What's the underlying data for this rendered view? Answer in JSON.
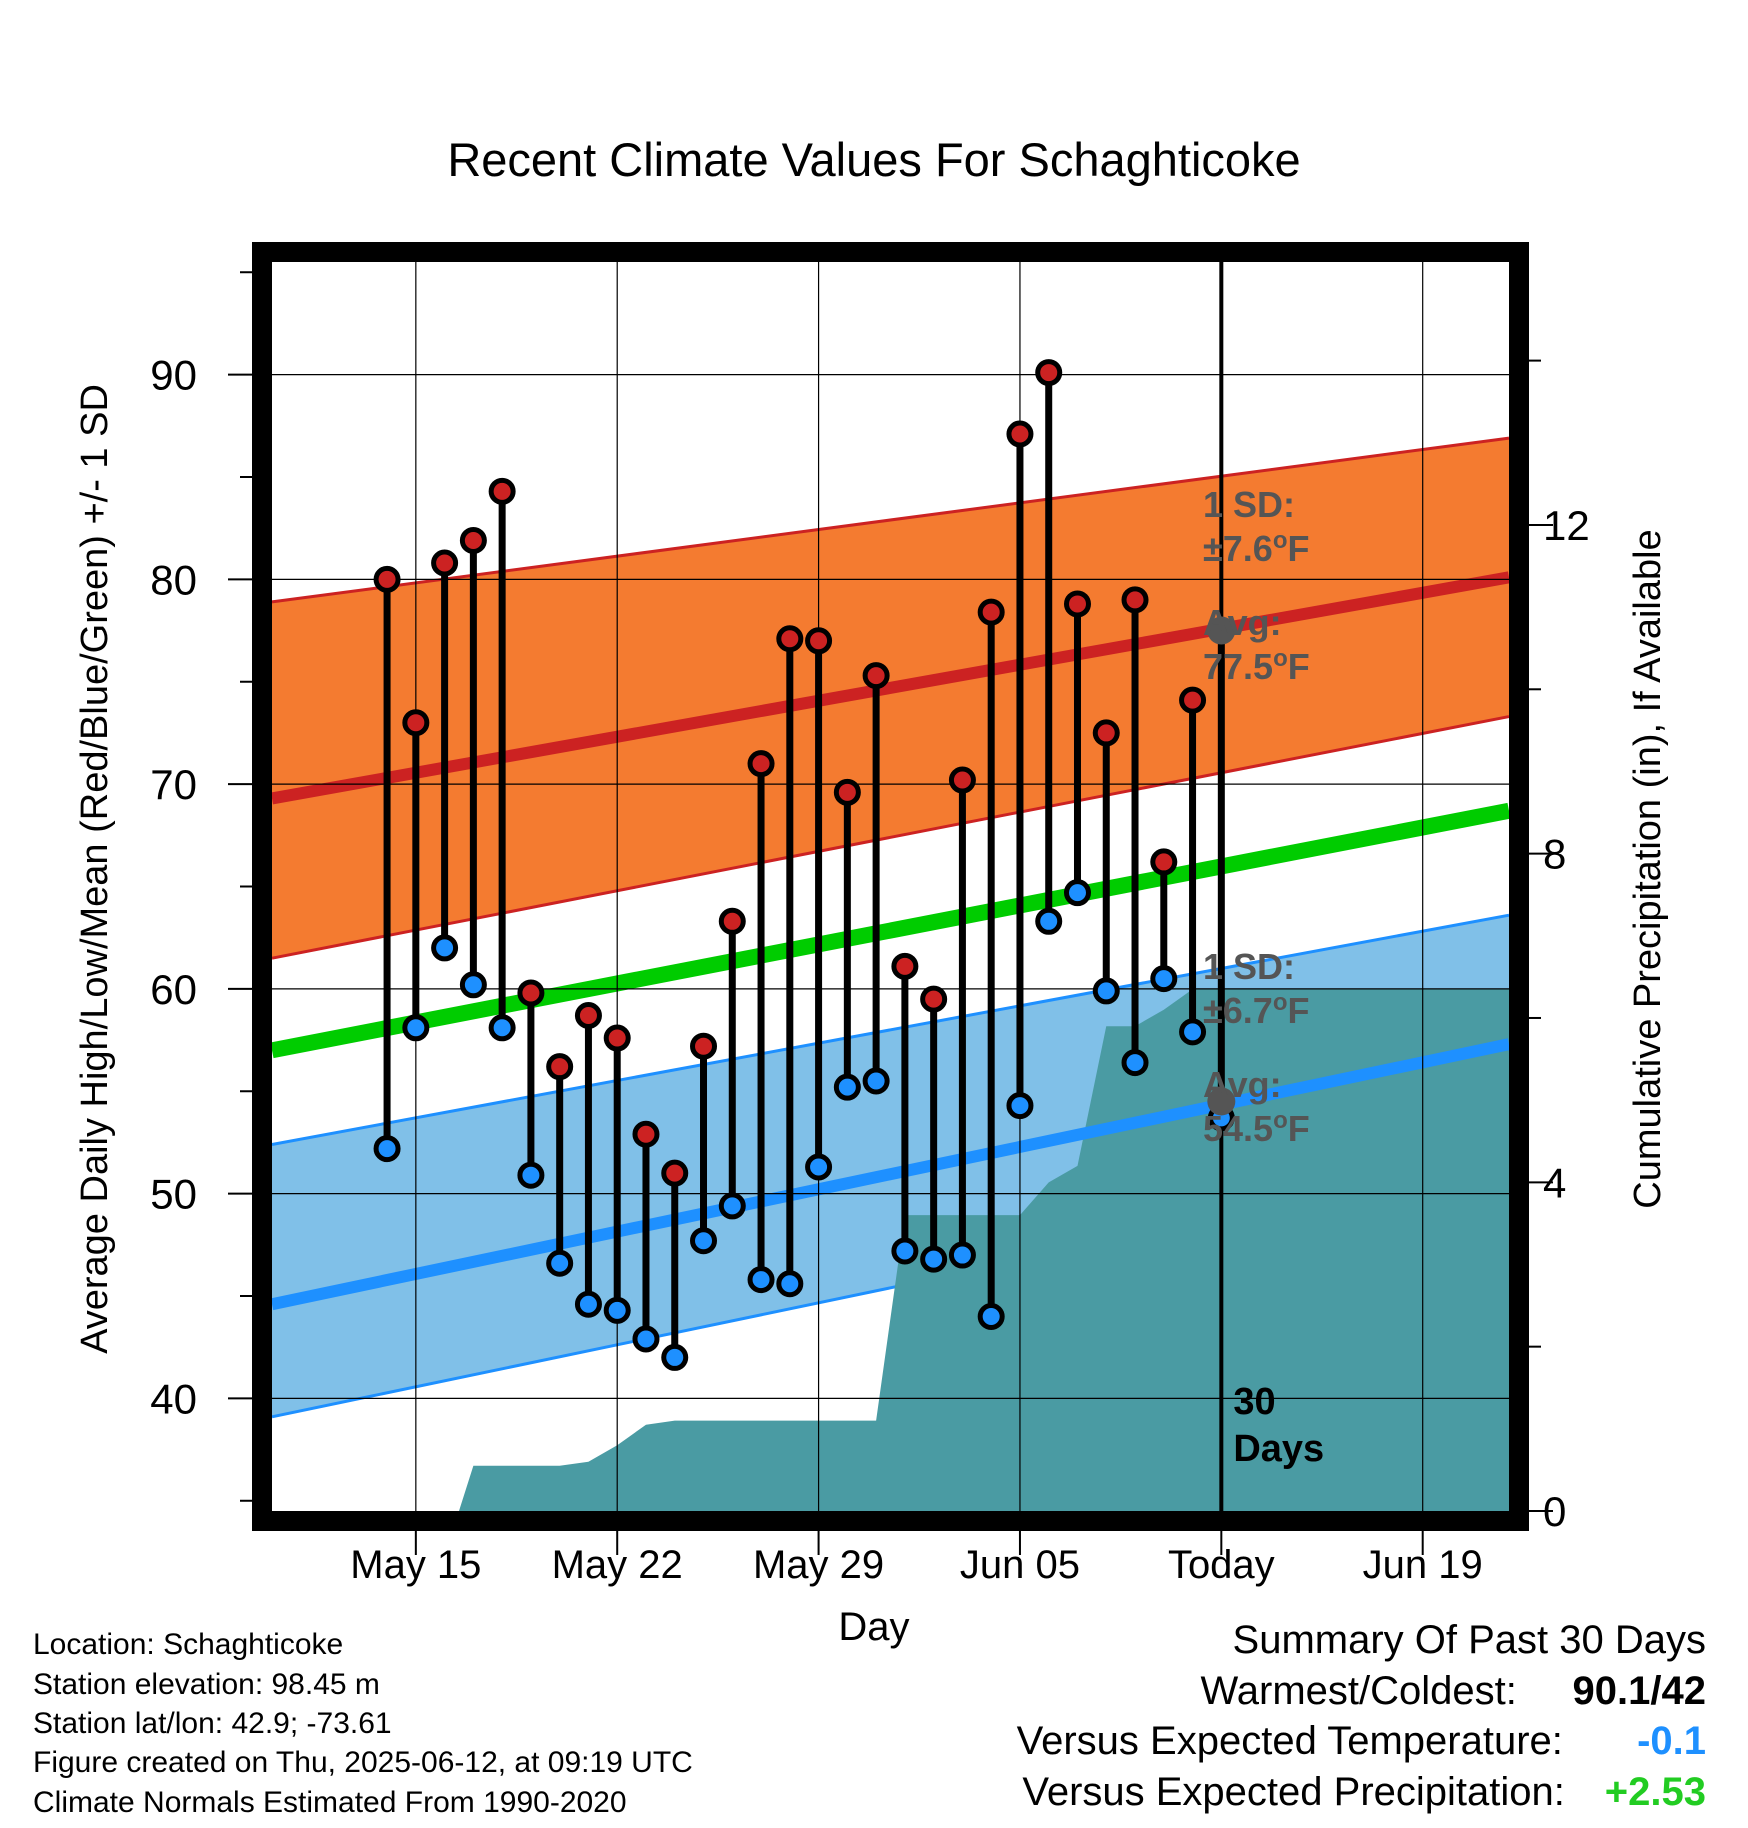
{
  "chart_data": {
    "type": "line",
    "title": "Recent Climate Values For Schaghticoke",
    "xlabel": "Day",
    "ylabel": "Average Daily High/Low/Mean (Red/Blue/Green) +/- 1 SD",
    "y2label": "Cumulative Precipitation (in), If Available",
    "ylim": [
      34.5,
      95.5
    ],
    "y2lim": [
      0,
      15.2
    ],
    "xlim_days": [
      "May 10",
      "Jun 22"
    ],
    "yticks": [
      "40",
      "50",
      "60",
      "70",
      "80",
      "90"
    ],
    "y2ticks": [
      "0",
      "4",
      "8",
      "12"
    ],
    "xticks": [
      {
        "date": "May 15",
        "label": "May 15"
      },
      {
        "date": "May 22",
        "label": "May 22"
      },
      {
        "date": "May 29",
        "label": "May 29"
      },
      {
        "date": "Jun 05",
        "label": "Jun 05"
      },
      {
        "date": "Jun 12",
        "label": "Today"
      },
      {
        "date": "Jun 19",
        "label": "Jun 19"
      }
    ],
    "today_date": "Jun 12",
    "today_label": [
      "30",
      "Days"
    ],
    "grid": true,
    "colors": {
      "high": "#cc2222",
      "low": "#1e90ff",
      "mean": "#00cc00",
      "high_band": "#f47b30",
      "high_band_edge": "#cc2222",
      "low_band": "#80c0e8",
      "low_band_edge": "#1e90ff",
      "precip": "#4a9ba3",
      "avg_marker": "#555555",
      "dep_temp": "#1e90ff",
      "dep_precip": "#22cc22"
    },
    "normals": {
      "start_date": "May 10",
      "end_date": "Jun 22",
      "high_avg": [
        69.3,
        80.1
      ],
      "high_band_lower": [
        61.5,
        73.3
      ],
      "high_band_upper": [
        78.9,
        86.9
      ],
      "low_avg": [
        44.6,
        57.3
      ],
      "low_band_lower": [
        39.1,
        51.7
      ],
      "low_band_upper": [
        52.4,
        63.6
      ],
      "mean_avg": [
        57.0,
        68.7
      ]
    },
    "series": [
      {
        "name": "Daily High",
        "x": [
          "May 14",
          "May 15",
          "May 16",
          "May 17",
          "May 18",
          "May 19",
          "May 20",
          "May 21",
          "May 22",
          "May 23",
          "May 24",
          "May 25",
          "May 26",
          "May 27",
          "May 28",
          "May 29",
          "May 30",
          "May 31",
          "Jun 01",
          "Jun 02",
          "Jun 03",
          "Jun 04",
          "Jun 05",
          "Jun 06",
          "Jun 07",
          "Jun 08",
          "Jun 09",
          "Jun 10",
          "Jun 11",
          "Jun 12"
        ],
        "values": [
          80.0,
          73.0,
          80.8,
          81.9,
          84.3,
          59.8,
          56.2,
          58.7,
          57.6,
          52.9,
          51.0,
          57.2,
          63.3,
          71.0,
          77.1,
          77.0,
          69.6,
          75.3,
          61.1,
          59.5,
          70.2,
          78.4,
          87.1,
          90.1,
          78.8,
          72.5,
          79.0,
          66.2,
          74.1,
          77.5
        ]
      },
      {
        "name": "Daily Low",
        "x": [
          "May 14",
          "May 15",
          "May 16",
          "May 17",
          "May 18",
          "May 19",
          "May 20",
          "May 21",
          "May 22",
          "May 23",
          "May 24",
          "May 25",
          "May 26",
          "May 27",
          "May 28",
          "May 29",
          "May 30",
          "May 31",
          "Jun 01",
          "Jun 02",
          "Jun 03",
          "Jun 04",
          "Jun 05",
          "Jun 06",
          "Jun 07",
          "Jun 08",
          "Jun 09",
          "Jun 10",
          "Jun 11",
          "Jun 12"
        ],
        "values": [
          52.2,
          58.1,
          62.0,
          60.2,
          58.1,
          50.9,
          46.6,
          44.6,
          44.3,
          42.9,
          42.0,
          47.7,
          49.4,
          45.8,
          45.6,
          51.3,
          55.2,
          55.5,
          47.2,
          46.8,
          47.0,
          44.0,
          54.3,
          63.3,
          64.7,
          59.9,
          56.4,
          60.5,
          57.9,
          53.7
        ]
      },
      {
        "name": "Cumulative Precipitation",
        "x": [
          "May 16.5",
          "May 17",
          "May 19",
          "May 20",
          "May 21",
          "May 22",
          "May 23",
          "May 24",
          "May 25",
          "May 26",
          "May 27",
          "May 28",
          "May 29",
          "May 30",
          "May 31",
          "Jun 01",
          "Jun 02",
          "Jun 03",
          "Jun 04",
          "Jun 05",
          "Jun 06",
          "Jun 07",
          "Jun 08",
          "Jun 09",
          "Jun 10",
          "Jun 11",
          "Jun 12",
          "Jun 22"
        ],
        "values": [
          0.0,
          0.55,
          0.55,
          0.55,
          0.6,
          0.8,
          1.05,
          1.1,
          1.1,
          1.1,
          1.1,
          1.1,
          1.1,
          1.1,
          1.1,
          3.6,
          3.6,
          3.6,
          3.6,
          3.6,
          4.0,
          4.2,
          5.9,
          5.9,
          6.1,
          6.35,
          6.35,
          6.35
        ]
      }
    ],
    "annotations": {
      "high_sd_label": [
        "1 SD:",
        "±7.6°F"
      ],
      "high_avg_label": [
        "Avg:",
        "77.5°F"
      ],
      "low_sd_label": [
        "1 SD:",
        "±6.7°F"
      ],
      "low_avg_label": [
        "Avg:",
        "54.5°F"
      ],
      "high_avg_value": 77.5,
      "low_avg_value": 54.5
    }
  },
  "info": {
    "location": "Location: Schaghticoke",
    "elevation": "Station elevation: 98.45 m",
    "latlon": "Station lat/lon: 42.9; -73.61",
    "created": "Figure created on Thu, 2025-06-12, at 09:19 UTC",
    "normals": "Climate Normals Estimated From 1990-2020"
  },
  "summary": {
    "title": "Summary Of Past 30 Days",
    "warm_cold_label": "Warmest/Coldest:",
    "warm_cold_value": "90.1/42",
    "temp_label": "Versus Expected Temperature:",
    "temp_value": "-0.1",
    "precip_label": "Versus Expected Precipitation:",
    "precip_value": "+2.53"
  }
}
